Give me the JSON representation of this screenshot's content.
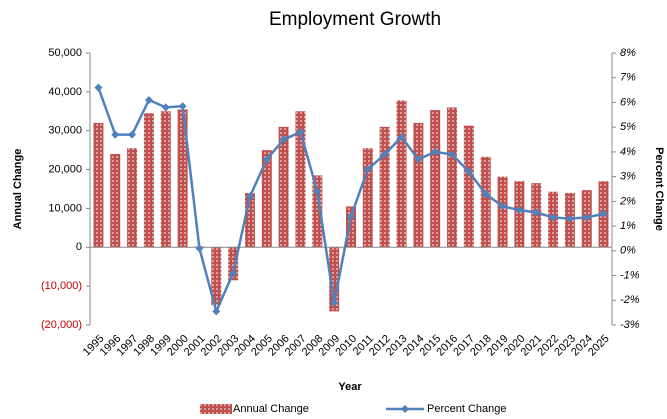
{
  "chart_data": {
    "type": "bar_line",
    "title": "Employment Growth",
    "x_label": "Year",
    "y_label": "Annual Change",
    "y2_label": "Percent Change",
    "categories": [
      "1995",
      "1996",
      "1997",
      "1998",
      "1999",
      "2000",
      "2001",
      "2002",
      "2003",
      "2004",
      "2005",
      "2006",
      "2007",
      "2008",
      "2009",
      "2010",
      "2011",
      "2012",
      "2013",
      "2014",
      "2015",
      "2016",
      "2017",
      "2018",
      "2019",
      "2020",
      "2021",
      "2022",
      "2023",
      "2024",
      "2025"
    ],
    "series": [
      {
        "name": "Annual Change",
        "type": "bar",
        "color": "#c0504d",
        "values": [
          32000,
          24000,
          25500,
          34500,
          35000,
          35500,
          200,
          -15000,
          -8500,
          14000,
          25000,
          31000,
          35000,
          18500,
          -16500,
          10500,
          25500,
          31000,
          37800,
          32000,
          35300,
          36000,
          31300,
          23300,
          18200,
          17000,
          16500,
          14300,
          14000,
          14700,
          17000
        ]
      },
      {
        "name": "Percent Change",
        "type": "line",
        "axis": "y2",
        "color": "#4f81bd",
        "values": [
          6.6,
          4.7,
          4.7,
          6.1,
          5.8,
          5.85,
          0.1,
          -2.45,
          -0.9,
          2.2,
          3.7,
          4.5,
          4.8,
          2.4,
          -2.1,
          1.4,
          3.3,
          3.9,
          4.6,
          3.7,
          4.0,
          3.9,
          3.2,
          2.3,
          1.8,
          1.65,
          1.55,
          1.35,
          1.3,
          1.35,
          1.5
        ]
      }
    ],
    "ylim": [
      -20000,
      50000
    ],
    "yticks": [
      {
        "value": 50000,
        "label": "50,000"
      },
      {
        "value": 40000,
        "label": "40,000"
      },
      {
        "value": 30000,
        "label": "30,000"
      },
      {
        "value": 20000,
        "label": "20,000"
      },
      {
        "value": 10000,
        "label": "10,000"
      },
      0,
      {
        "value": -10000,
        "label": "(10,000)"
      },
      {
        "value": -20000,
        "label": "(20,000)"
      }
    ],
    "negative_tick_color": "#c00000",
    "y2lim": [
      -3,
      8
    ],
    "y2ticks": [
      {
        "value": 8,
        "label": "8%"
      },
      {
        "value": 7,
        "label": "7%"
      },
      {
        "value": 6,
        "label": "6%"
      },
      {
        "value": 5,
        "label": "5%"
      },
      {
        "value": 4,
        "label": "4%"
      },
      {
        "value": 3,
        "label": "3%"
      },
      {
        "value": 2,
        "label": "2%"
      },
      {
        "value": 1,
        "label": "1%"
      },
      {
        "value": 0,
        "label": "0%"
      },
      {
        "value": -1,
        "label": "-1%"
      },
      {
        "value": -2,
        "label": "-2%"
      },
      {
        "value": -3,
        "label": "-3%"
      }
    ],
    "legend": "bottom"
  }
}
